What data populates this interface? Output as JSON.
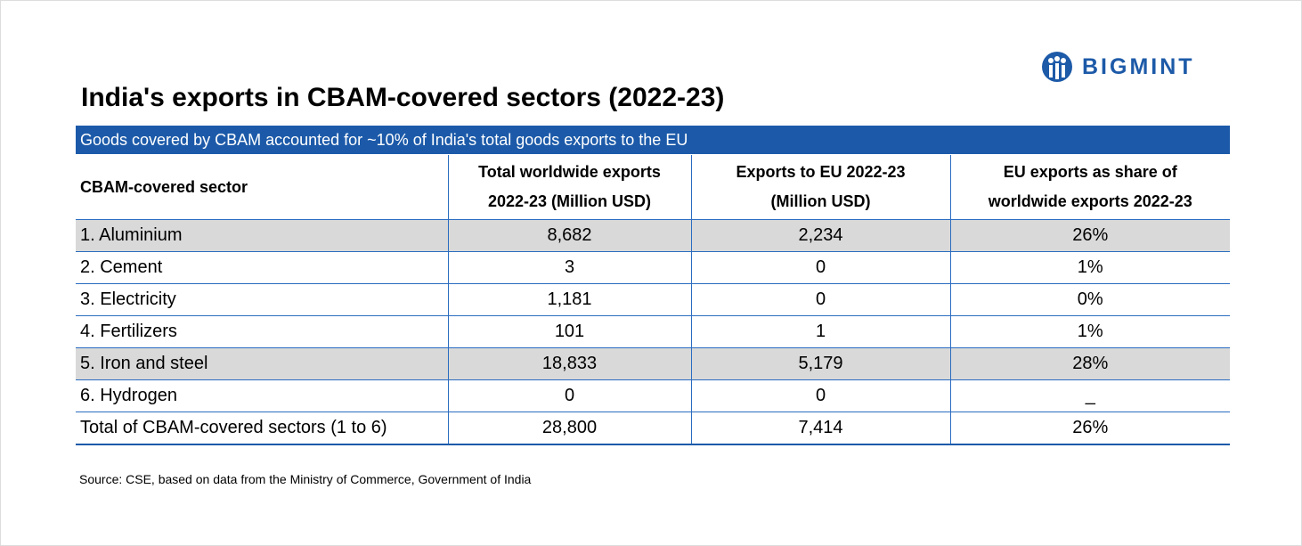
{
  "logo": "BIGMINT",
  "title": "India's exports in CBAM-covered sectors (2022-23)",
  "subtitle": "Goods covered by CBAM accounted for ~10% of India's total goods exports to the EU",
  "table": {
    "header": [
      "CBAM-covered sector",
      "Total worldwide exports 2022-23 (Million USD)",
      "Exports to EU 2022-23 (Million USD)",
      "EU exports as share of worldwide exports 2022-23"
    ],
    "rows": [
      [
        "1. Aluminium",
        "8,682",
        "2,234",
        "26%"
      ],
      [
        "2. Cement",
        "3",
        "0",
        "1%"
      ],
      [
        "3. Electricity",
        "1,181",
        "0",
        "0%"
      ],
      [
        "4. Fertilizers",
        "101",
        "1",
        "1%"
      ],
      [
        "5. Iron and steel",
        "18,833",
        "5,179",
        "28%"
      ],
      [
        "6. Hydrogen",
        "0",
        "0",
        "_"
      ],
      [
        "Total of CBAM-covered sectors (1 to 6)",
        "28,800",
        "7,414",
        "26%"
      ]
    ]
  },
  "source": "Source: CSE, based on data from the Ministry of Commerce, Government of India"
}
